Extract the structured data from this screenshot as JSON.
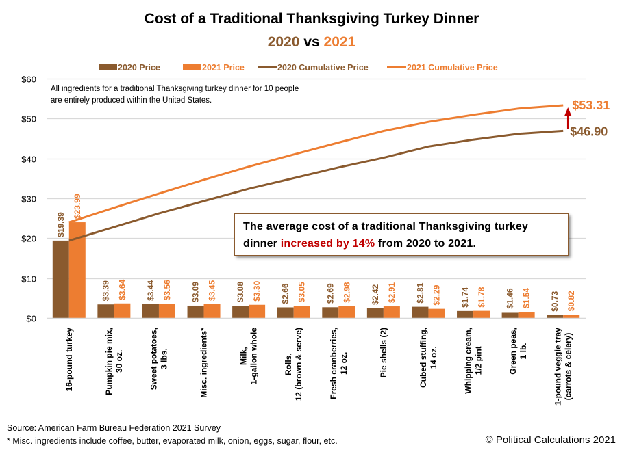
{
  "colors": {
    "y2020": "#8a5a2e",
    "y2021": "#ed7d31",
    "grid": "#d9d9d9",
    "arrow": "#c00000",
    "highlight": "#c00000"
  },
  "chart_data": {
    "type": "bar",
    "title": "Cost of a Traditional Thanksgiving Turkey Dinner",
    "subtitle": {
      "a": "2020",
      "vs": "vs",
      "b": "2021"
    },
    "xlabel": "",
    "ylabel": "",
    "ylim": [
      0,
      60
    ],
    "yticks": [
      0,
      10,
      20,
      30,
      40,
      50,
      60
    ],
    "ytick_labels": [
      "$0",
      "$10",
      "$20",
      "$30",
      "$40",
      "$50",
      "$60"
    ],
    "grid": true,
    "legend_position": "top",
    "legend": [
      "2020 Price",
      "2021 Price",
      "2020 Cumulative Price",
      "2021 Cumulative Price"
    ],
    "categories": [
      [
        "16-pound turkey"
      ],
      [
        "Pumpkin pie mix,",
        "30 oz."
      ],
      [
        "Sweet potatoes,",
        "3 lbs."
      ],
      [
        "Misc. ingredients*"
      ],
      [
        "Milk,",
        "1-gallon whole"
      ],
      [
        "Rolls,",
        "12 (brown & serve)"
      ],
      [
        "Fresh cranberries,",
        "12 oz."
      ],
      [
        "Pie shells (2)"
      ],
      [
        "Cubed stuffing,",
        "14 oz."
      ],
      [
        "Whipping cream,",
        "1/2 pint"
      ],
      [
        "Green peas,",
        "1 lb."
      ],
      [
        "1-pound veggie tray",
        "(carrots & celery)"
      ]
    ],
    "series": [
      {
        "name": "2020 Price",
        "type": "bar",
        "values": [
          19.39,
          3.39,
          3.44,
          3.09,
          3.08,
          2.66,
          2.69,
          2.42,
          2.81,
          1.74,
          1.46,
          0.73
        ]
      },
      {
        "name": "2021 Price",
        "type": "bar",
        "values": [
          23.99,
          3.64,
          3.56,
          3.45,
          3.3,
          3.05,
          2.98,
          2.91,
          2.29,
          1.78,
          1.54,
          0.82
        ]
      },
      {
        "name": "2020 Cumulative Price",
        "type": "line",
        "values": [
          19.39,
          22.78,
          26.22,
          29.31,
          32.39,
          35.05,
          37.74,
          40.16,
          42.97,
          44.71,
          46.17,
          46.9
        ]
      },
      {
        "name": "2021 Cumulative Price",
        "type": "line",
        "values": [
          23.99,
          27.63,
          31.19,
          34.64,
          37.94,
          40.99,
          43.97,
          46.88,
          49.17,
          50.95,
          52.49,
          53.31
        ]
      }
    ],
    "end_labels": {
      "y2020": "$46.90",
      "y2021": "$53.31"
    },
    "annotations": {
      "note_line1": "All ingredients for a traditional Thanksgiving  turkey dinner  for 10 people",
      "note_line2": "are entirely produced within the United States.",
      "callout_line1": "The average cost of a traditional  Thanksgiving  turkey",
      "callout_pre": "dinner ",
      "callout_highlight": "increased by 14%",
      "callout_post": " from 2020 to 2021."
    }
  },
  "footer": {
    "source": "Source: American Farm Bureau Federation  2021 Survey",
    "footnote": "* Misc. ingredients include coffee, butter,  evaporated milk, onion, eggs, sugar, flour, etc.",
    "copyright": "© Political Calculations 2021"
  }
}
